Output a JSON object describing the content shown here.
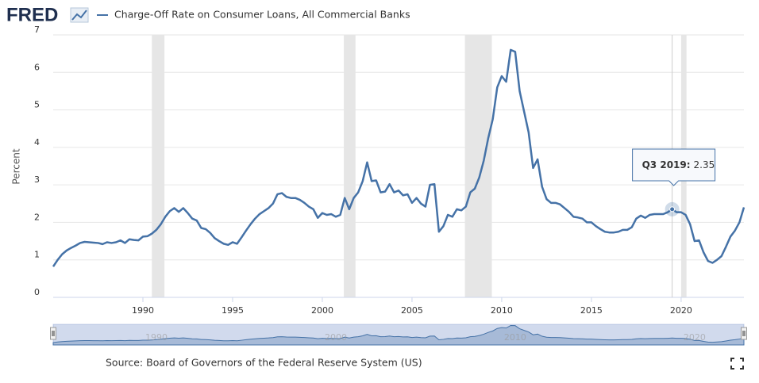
{
  "brand": "FRED",
  "chart_data": {
    "type": "line",
    "ylabel": "Percent",
    "source": "Source: Board of Governors of the Federal Reserve System (US)",
    "x": [
      1985,
      1985.25,
      1985.5,
      1985.75,
      1986,
      1986.25,
      1986.5,
      1986.75,
      1987,
      1987.25,
      1987.5,
      1987.75,
      1988,
      1988.25,
      1988.5,
      1988.75,
      1989,
      1989.25,
      1989.5,
      1989.75,
      1990,
      1990.25,
      1990.5,
      1990.75,
      1991,
      1991.25,
      1991.5,
      1991.75,
      1992,
      1992.25,
      1992.5,
      1992.75,
      1993,
      1993.25,
      1993.5,
      1993.75,
      1994,
      1994.25,
      1994.5,
      1994.75,
      1995,
      1995.25,
      1995.5,
      1995.75,
      1996,
      1996.25,
      1996.5,
      1996.75,
      1997,
      1997.25,
      1997.5,
      1997.75,
      1998,
      1998.25,
      1998.5,
      1998.75,
      1999,
      1999.25,
      1999.5,
      1999.75,
      2000,
      2000.25,
      2000.5,
      2000.75,
      2001,
      2001.25,
      2001.5,
      2001.75,
      2002,
      2002.25,
      2002.5,
      2002.75,
      2003,
      2003.25,
      2003.5,
      2003.75,
      2004,
      2004.25,
      2004.5,
      2004.75,
      2005,
      2005.25,
      2005.5,
      2005.75,
      2006,
      2006.25,
      2006.5,
      2006.75,
      2007,
      2007.25,
      2007.5,
      2007.75,
      2008,
      2008.25,
      2008.5,
      2008.75,
      2009,
      2009.25,
      2009.5,
      2009.75,
      2010,
      2010.25,
      2010.5,
      2010.75,
      2011,
      2011.25,
      2011.5,
      2011.75,
      2012,
      2012.25,
      2012.5,
      2012.75,
      2013,
      2013.25,
      2013.5,
      2013.75,
      2014,
      2014.25,
      2014.5,
      2014.75,
      2015,
      2015.25,
      2015.5,
      2015.75,
      2016,
      2016.25,
      2016.5,
      2016.75,
      2017,
      2017.25,
      2017.5,
      2017.75,
      2018,
      2018.25,
      2018.5,
      2018.75,
      2019,
      2019.25,
      2019.5,
      2019.75,
      2020,
      2020.25,
      2020.5,
      2020.75,
      2021,
      2021.25,
      2021.5,
      2021.75,
      2022,
      2022.25,
      2022.5,
      2022.75,
      2023,
      2023.25,
      2023.5
    ],
    "series": [
      {
        "name": "Charge-Off Rate on Consumer Loans, All Commercial Banks",
        "color": "#4572a7",
        "values": [
          0.82,
          1.0,
          1.15,
          1.25,
          1.32,
          1.38,
          1.45,
          1.48,
          1.47,
          1.46,
          1.45,
          1.42,
          1.47,
          1.45,
          1.47,
          1.52,
          1.45,
          1.55,
          1.53,
          1.52,
          1.62,
          1.63,
          1.7,
          1.8,
          1.95,
          2.15,
          2.3,
          2.38,
          2.28,
          2.38,
          2.25,
          2.1,
          2.05,
          1.85,
          1.82,
          1.72,
          1.58,
          1.5,
          1.43,
          1.4,
          1.47,
          1.43,
          1.6,
          1.78,
          1.95,
          2.1,
          2.22,
          2.3,
          2.38,
          2.5,
          2.75,
          2.78,
          2.68,
          2.65,
          2.65,
          2.6,
          2.52,
          2.42,
          2.35,
          2.12,
          2.25,
          2.2,
          2.22,
          2.15,
          2.2,
          2.65,
          2.35,
          2.65,
          2.8,
          3.1,
          3.6,
          3.1,
          3.12,
          2.8,
          2.82,
          3.02,
          2.8,
          2.85,
          2.72,
          2.75,
          2.52,
          2.65,
          2.5,
          2.42,
          3.0,
          3.02,
          1.75,
          1.9,
          2.2,
          2.15,
          2.35,
          2.32,
          2.42,
          2.8,
          2.9,
          3.2,
          3.65,
          4.25,
          4.75,
          5.6,
          5.9,
          5.75,
          6.6,
          6.55,
          5.5,
          4.95,
          4.4,
          3.45,
          3.68,
          2.95,
          2.62,
          2.52,
          2.52,
          2.48,
          2.38,
          2.28,
          2.15,
          2.13,
          2.1,
          2.0,
          2.0,
          1.9,
          1.82,
          1.75,
          1.73,
          1.73,
          1.75,
          1.8,
          1.8,
          1.87,
          2.1,
          2.18,
          2.12,
          2.2,
          2.22,
          2.22,
          2.22,
          2.27,
          2.35,
          2.27,
          2.27,
          2.2,
          1.95,
          1.5,
          1.52,
          1.2,
          0.97,
          0.92,
          1.0,
          1.1,
          1.35,
          1.62,
          1.78,
          2.0,
          2.4
        ]
      }
    ],
    "xlim": [
      1985,
      2023.5
    ],
    "xticks": [
      1990,
      1995,
      2000,
      2005,
      2010,
      2015,
      2020
    ],
    "ylim": [
      0,
      7
    ],
    "yticks": [
      0,
      1,
      2,
      3,
      4,
      5,
      6,
      7
    ],
    "grid": true,
    "recessions": [
      [
        1990.5,
        1991.2
      ],
      [
        2001.2,
        2001.85
      ],
      [
        2007.95,
        2009.45
      ],
      [
        2020.0,
        2020.3
      ]
    ],
    "navigator_ticks": [
      1990,
      2000,
      2010,
      2020
    ],
    "tooltip": {
      "label": "Q3 2019:",
      "x": 2019.5
    }
  }
}
